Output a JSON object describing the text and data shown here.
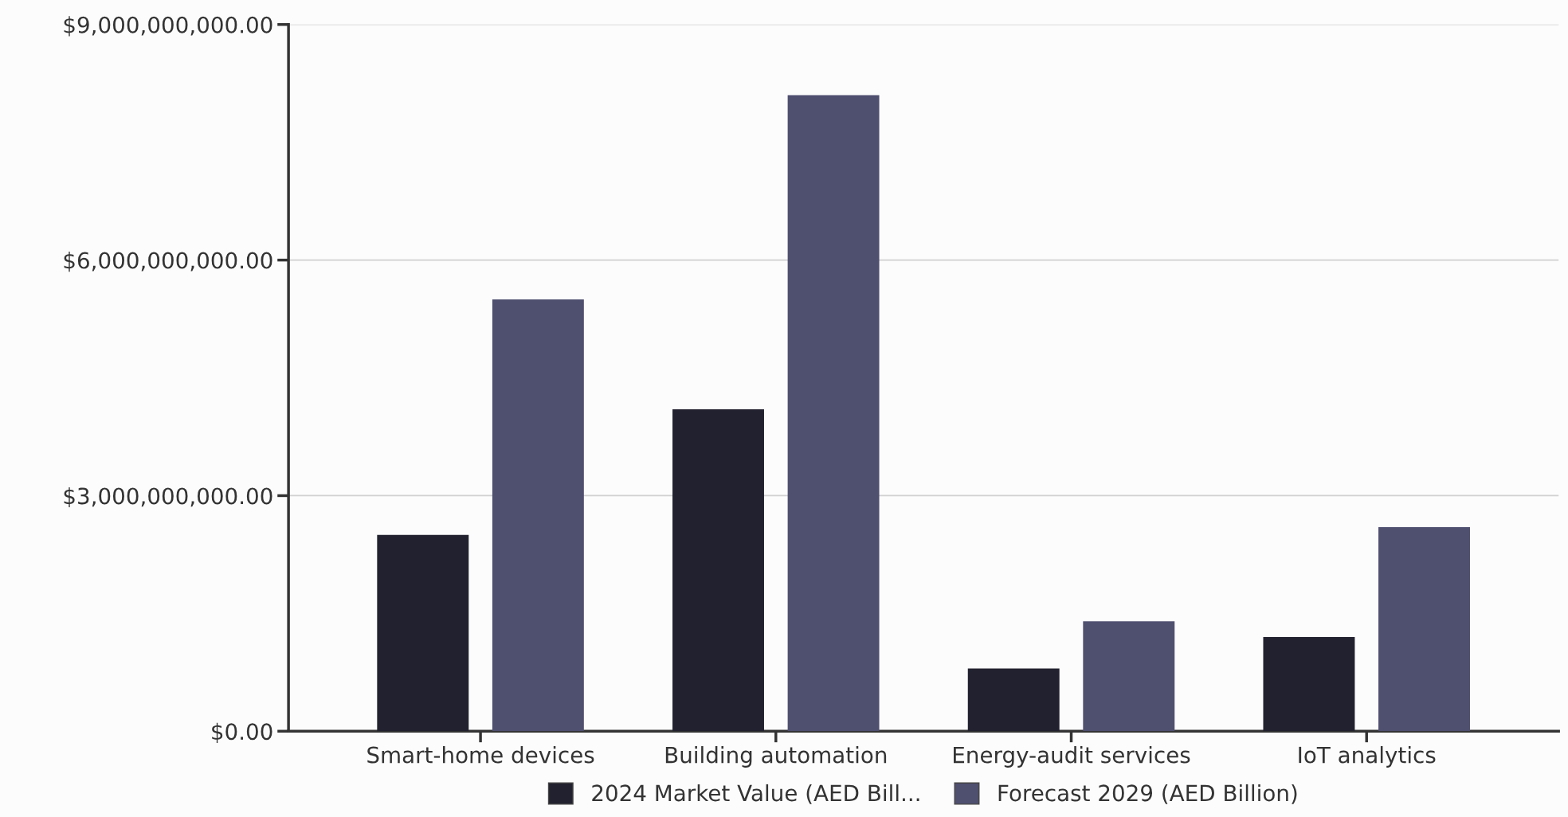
{
  "chart_data": {
    "type": "bar",
    "categories": [
      "Smart-home devices",
      "Building automation",
      "Energy-audit services",
      "IoT analytics"
    ],
    "series": [
      {
        "name": "2024 Market Value (AED Bill...",
        "color": "#22212f",
        "values": [
          2500000000,
          4100000000,
          800000000,
          1200000000
        ]
      },
      {
        "name": "Forecast 2029 (AED Billion)",
        "color": "#4f4f70",
        "values": [
          5500000000,
          8100000000,
          1400000000,
          2600000000
        ]
      }
    ],
    "ylim": [
      0,
      9000000000
    ],
    "yticks": [
      {
        "value": 0,
        "label": "$0.00"
      },
      {
        "value": 3000000000,
        "label": "$3,000,000,000.00"
      },
      {
        "value": 6000000000,
        "label": "$6,000,000,000.00"
      },
      {
        "value": 9000000000,
        "label": "$9,000,000,000.00"
      }
    ],
    "grid": "y",
    "legend": "bottom"
  }
}
